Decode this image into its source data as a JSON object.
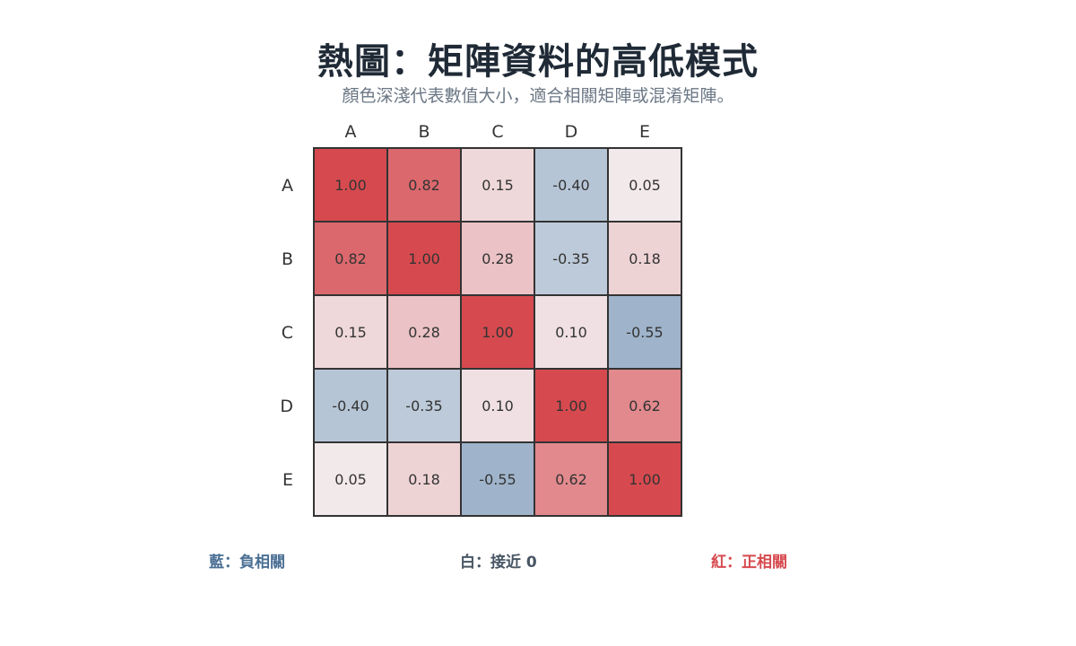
{
  "header": {
    "title": "熱圖：矩陣資料的高低模式",
    "subtitle": "顏色深淺代表數值大小，適合相關矩陣或混淆矩陣。"
  },
  "legend": {
    "negative": "藍：負相關",
    "zero": "白：接近 0",
    "positive": "紅：正相關"
  },
  "colors": {
    "negative": "#5a82aa",
    "neutral": "#f3f1f3",
    "positive": "#d64a4f",
    "negative_text": "#4a6f94",
    "zero_text": "#475564",
    "positive_text": "#d64a4f",
    "grid": "#333333",
    "axis_text": "#333333"
  },
  "chart_data": {
    "type": "heatmap",
    "title": "熱圖：矩陣資料的高低模式",
    "subtitle": "顏色深淺代表數值大小，適合相關矩陣或混淆矩陣。",
    "x_labels": [
      "A",
      "B",
      "C",
      "D",
      "E"
    ],
    "y_labels": [
      "A",
      "B",
      "C",
      "D",
      "E"
    ],
    "values": [
      [
        1.0,
        0.82,
        0.15,
        -0.4,
        0.05
      ],
      [
        0.82,
        1.0,
        0.28,
        -0.35,
        0.18
      ],
      [
        0.15,
        0.28,
        1.0,
        0.1,
        -0.55
      ],
      [
        -0.4,
        -0.35,
        0.1,
        1.0,
        0.62
      ],
      [
        0.05,
        0.18,
        -0.55,
        0.62,
        1.0
      ]
    ],
    "value_range": [
      -1,
      1
    ],
    "legend_position": "bottom"
  }
}
